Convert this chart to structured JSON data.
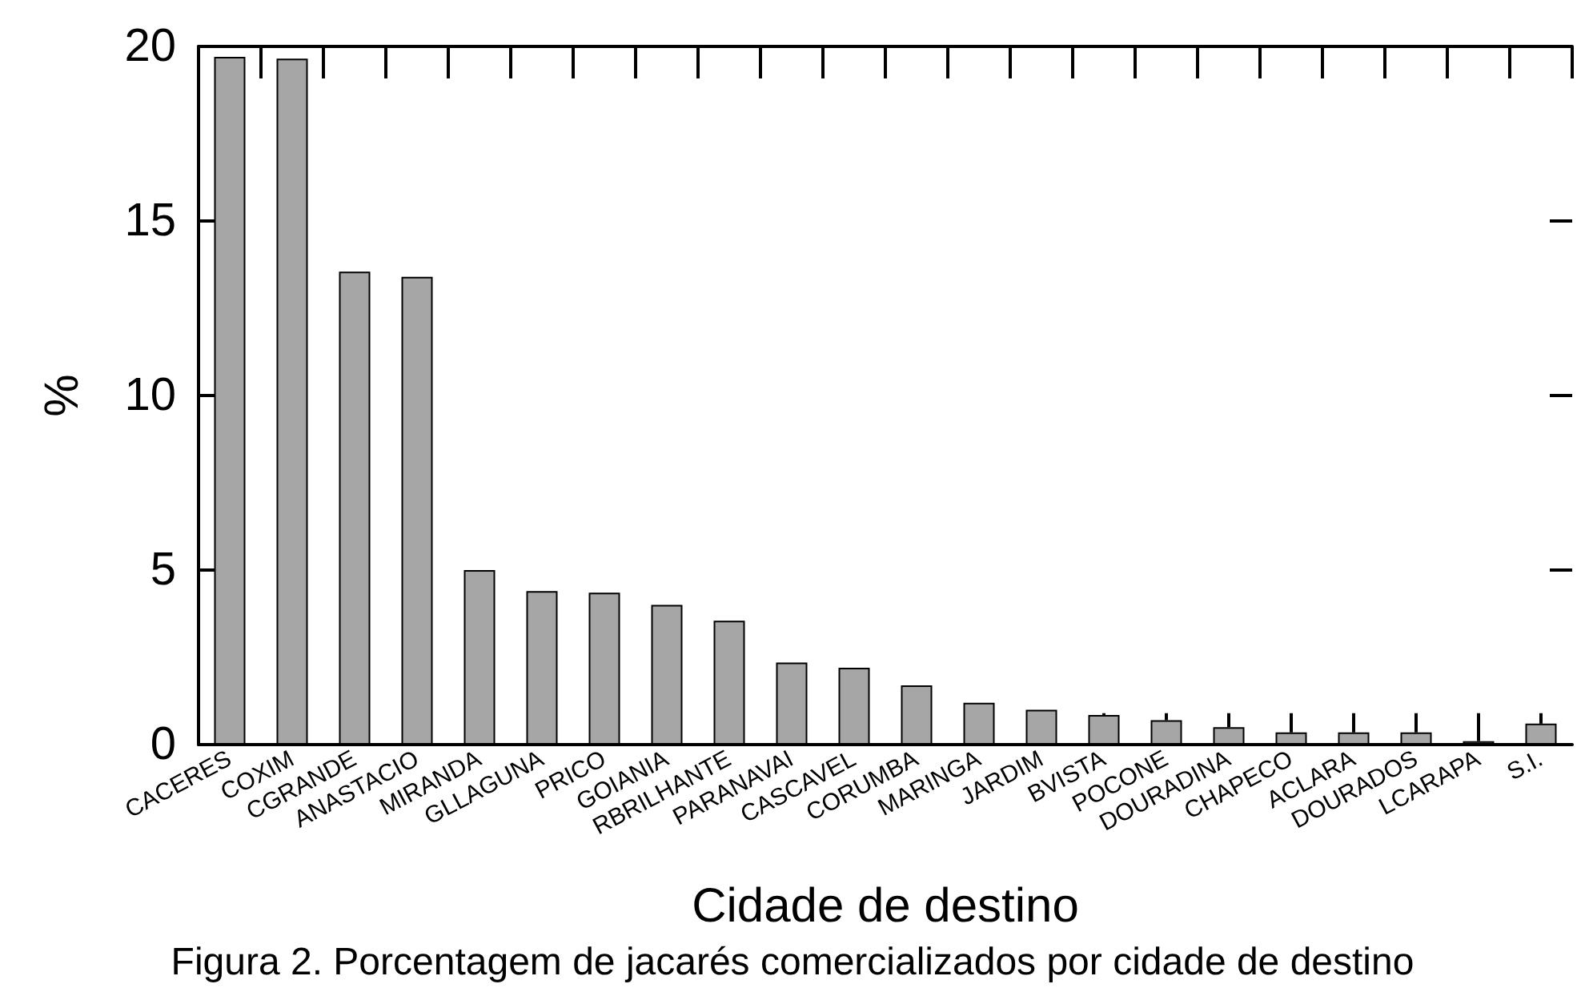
{
  "chart_data": {
    "type": "bar",
    "xlabel": "Cidade de destino",
    "ylabel": "%",
    "categories": [
      "CACERES",
      "COXIM",
      "CGRANDE",
      "ANASTACIO",
      "MIRANDA",
      "GLLAGUNA",
      "PRICO",
      "GOIANIA",
      "RBRILHANTE",
      "PARANAVAI",
      "CASCAVEL",
      "CORUMBA",
      "MARINGA",
      "JARDIM",
      "BVISTA",
      "POCONE",
      "DOURADINA",
      "CHAPECO",
      "ACLARA",
      "DOURADOS",
      "LCARAPA",
      "S.I."
    ],
    "values": [
      19.7,
      19.65,
      13.55,
      13.4,
      5.0,
      4.4,
      4.35,
      4.0,
      3.55,
      2.35,
      2.2,
      1.7,
      1.2,
      1.0,
      0.85,
      0.7,
      0.5,
      0.35,
      0.35,
      0.35,
      0.1,
      0.6
    ],
    "errors": [
      null,
      null,
      null,
      null,
      null,
      null,
      null,
      null,
      null,
      null,
      null,
      null,
      null,
      null,
      [
        0.85,
        0.9
      ],
      [
        0.7,
        0.9
      ],
      [
        0.5,
        0.9
      ],
      [
        0.35,
        0.9
      ],
      [
        0.35,
        0.9
      ],
      [
        0.35,
        0.9
      ],
      [
        0.1,
        0.9
      ],
      [
        0.6,
        0.9
      ]
    ],
    "color": "#a6a6a6",
    "ylim": [
      0,
      20
    ],
    "yticks": [
      0,
      5,
      10,
      15,
      20
    ],
    "grid": false,
    "annotations": [
      "Figura 2. Porcentagem de jacarés comercializados por cidade de destino"
    ]
  }
}
